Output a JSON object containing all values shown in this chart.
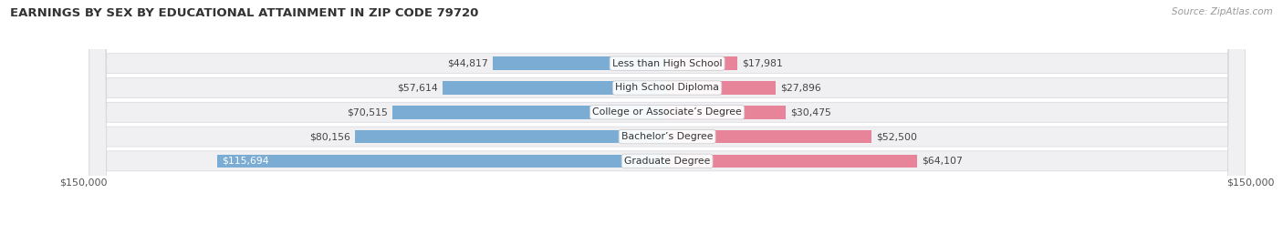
{
  "title": "EARNINGS BY SEX BY EDUCATIONAL ATTAINMENT IN ZIP CODE 79720",
  "source": "Source: ZipAtlas.com",
  "categories": [
    "Less than High School",
    "High School Diploma",
    "College or Associate’s Degree",
    "Bachelor’s Degree",
    "Graduate Degree"
  ],
  "male_values": [
    44817,
    57614,
    70515,
    80156,
    115694
  ],
  "female_values": [
    17981,
    27896,
    30475,
    52500,
    64107
  ],
  "male_color": "#7badd4",
  "female_color": "#e8849a",
  "row_bg_color": "#f0f0f2",
  "row_border_color": "#d8d8de",
  "max_value": 150000,
  "xlabel_left": "$150,000",
  "xlabel_right": "$150,000",
  "title_fontsize": 9.5,
  "source_fontsize": 7.5,
  "label_fontsize": 7.8,
  "tick_fontsize": 8,
  "legend_fontsize": 8,
  "bar_label_fontsize": 7.8
}
